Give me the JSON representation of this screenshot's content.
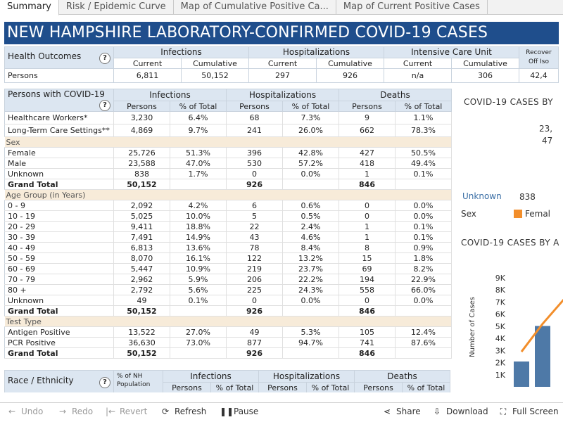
{
  "tabs": [
    "Summary",
    "Risk / Epidemic Curve",
    "Map of Cumulative Positive Ca...",
    "Map of Current Positive Cases"
  ],
  "banner_title": "NEW HAMPSHIRE LABORATORY-CONFIRMED COVID-19 CASES",
  "outcomes": {
    "label": "Health Outcomes",
    "groups": [
      "Infections",
      "Hospitalizations",
      "Intensive Care Unit",
      "Recover",
      "Off Iso"
    ],
    "sub": [
      "Current",
      "Cumulative",
      "Current",
      "Cumulative",
      "Current",
      "Cumulative"
    ],
    "row_label": "Persons",
    "values": [
      "6,811",
      "50,152",
      "297",
      "926",
      "n/a",
      "306",
      "42,4"
    ]
  },
  "main": {
    "label": "Persons with COVID-19",
    "groups": [
      "Infections",
      "Hospitalizations",
      "Deaths"
    ],
    "sub": [
      "Persons",
      "% of Total",
      "Persons",
      "% of Total",
      "Persons",
      "% of Total"
    ],
    "top_rows": [
      [
        "Healthcare Workers*",
        "3,230",
        "6.4%",
        "68",
        "7.3%",
        "9",
        "1.1%"
      ],
      [
        "Long-Term Care Settings**",
        "4,869",
        "9.7%",
        "241",
        "26.0%",
        "662",
        "78.3%"
      ]
    ],
    "sections": [
      {
        "title": "Sex",
        "rows": [
          [
            "Female",
            "25,726",
            "51.3%",
            "396",
            "42.8%",
            "427",
            "50.5%"
          ],
          [
            "Male",
            "23,588",
            "47.0%",
            "530",
            "57.2%",
            "418",
            "49.4%"
          ],
          [
            "Unknown",
            "838",
            "1.7%",
            "0",
            "0.0%",
            "1",
            "0.1%"
          ],
          [
            "Grand Total",
            "50,152",
            "",
            "926",
            "",
            "846",
            ""
          ]
        ]
      },
      {
        "title": "Age Group (in Years)",
        "rows": [
          [
            "0 - 9",
            "2,092",
            "4.2%",
            "6",
            "0.6%",
            "0",
            "0.0%"
          ],
          [
            "10 - 19",
            "5,025",
            "10.0%",
            "5",
            "0.5%",
            "0",
            "0.0%"
          ],
          [
            "20 - 29",
            "9,411",
            "18.8%",
            "22",
            "2.4%",
            "1",
            "0.1%"
          ],
          [
            "30 - 39",
            "7,491",
            "14.9%",
            "43",
            "4.6%",
            "1",
            "0.1%"
          ],
          [
            "40 - 49",
            "6,813",
            "13.6%",
            "78",
            "8.4%",
            "8",
            "0.9%"
          ],
          [
            "50 - 59",
            "8,070",
            "16.1%",
            "122",
            "13.2%",
            "15",
            "1.8%"
          ],
          [
            "60 - 69",
            "5,447",
            "10.9%",
            "219",
            "23.7%",
            "69",
            "8.2%"
          ],
          [
            "70 - 79",
            "2,962",
            "5.9%",
            "206",
            "22.2%",
            "194",
            "22.9%"
          ],
          [
            "80 +",
            "2,792",
            "5.6%",
            "225",
            "24.3%",
            "558",
            "66.0%"
          ],
          [
            "Unknown",
            "49",
            "0.1%",
            "0",
            "0.0%",
            "0",
            "0.0%"
          ],
          [
            "Grand Total",
            "50,152",
            "",
            "926",
            "",
            "846",
            ""
          ]
        ]
      },
      {
        "title": "Test Type",
        "rows": [
          [
            "Antigen Positive",
            "13,522",
            "27.0%",
            "49",
            "5.3%",
            "105",
            "12.4%"
          ],
          [
            "PCR Positive",
            "36,630",
            "73.0%",
            "877",
            "94.7%",
            "741",
            "87.6%"
          ],
          [
            "Grand Total",
            "50,152",
            "",
            "926",
            "",
            "846",
            ""
          ]
        ]
      }
    ]
  },
  "race": {
    "label": "Race / Ethnicity",
    "pop_label": "% of NH Population",
    "groups": [
      "Infections",
      "Hospitalizations",
      "Deaths"
    ],
    "sub": [
      "Persons",
      "% of Total",
      "Persons",
      "% of Total",
      "Persons",
      "% of Total"
    ]
  },
  "right_panel": {
    "title1": "COVID-19 CASES BY",
    "val1": "23,",
    "val2": "47",
    "unknown_label": "Unknown",
    "unknown_value": "838",
    "sex_label": "Sex",
    "legend_female": "Femal",
    "title2": "COVID-19 CASES BY A",
    "y_axis_label": "Number of Cases",
    "colors": {
      "bar": "#4e79a7",
      "line": "#f28e2b"
    }
  },
  "chart_data": {
    "type": "bar",
    "ylabel": "Number of Cases",
    "y_ticks": [
      "1K",
      "2K",
      "3K",
      "4K",
      "5K",
      "6K",
      "7K",
      "8K",
      "9K"
    ],
    "ylim": [
      0,
      9000
    ],
    "values": [
      2092,
      5025
    ],
    "line_values": [
      2900,
      5200,
      7200
    ]
  },
  "toolbar": {
    "undo": "Undo",
    "redo": "Redo",
    "revert": "Revert",
    "refresh": "Refresh",
    "pause": "Pause",
    "share": "Share",
    "download": "Download",
    "fullscreen": "Full Screen"
  }
}
